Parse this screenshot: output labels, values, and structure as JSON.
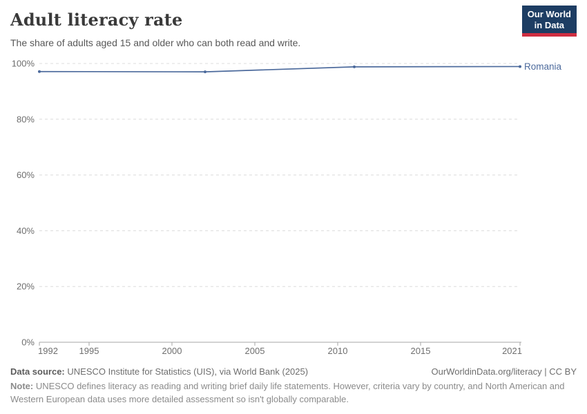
{
  "header": {
    "title": "Adult literacy rate",
    "subtitle": "The share of adults aged 15 and older who can both read and write.",
    "logo": {
      "line1": "Our World",
      "line2": "in Data"
    }
  },
  "colors": {
    "series_blue": "#4c6a9c",
    "grid": "#dcdcdc",
    "axis": "#a5a5a5",
    "tick_text": "#6e6e6e",
    "logo_navy": "#1d3d63",
    "logo_red": "#cf2e41"
  },
  "chart_data": {
    "type": "line",
    "title": "Adult literacy rate",
    "subtitle": "The share of adults aged 15 and older who can both read and write.",
    "x": [
      1992,
      2002,
      2011,
      2021
    ],
    "series": [
      {
        "name": "Romania",
        "color": "#4c6a9c",
        "values": [
          97.1,
          97.0,
          98.8,
          98.9
        ]
      }
    ],
    "xlim": [
      1992,
      2021
    ],
    "ylim": [
      0,
      100
    ],
    "xticks": [
      {
        "v": 1992,
        "label": "1992"
      },
      {
        "v": 1995,
        "label": "1995"
      },
      {
        "v": 2000,
        "label": "2000"
      },
      {
        "v": 2005,
        "label": "2005"
      },
      {
        "v": 2010,
        "label": "2010"
      },
      {
        "v": 2015,
        "label": "2015"
      },
      {
        "v": 2021,
        "label": "2021"
      }
    ],
    "yticks": [
      {
        "v": 0,
        "label": "0%"
      },
      {
        "v": 20,
        "label": "20%"
      },
      {
        "v": 40,
        "label": "40%"
      },
      {
        "v": 60,
        "label": "60%"
      },
      {
        "v": 80,
        "label": "80%"
      },
      {
        "v": 100,
        "label": "100%"
      }
    ],
    "grid": "horizontal-dashed",
    "legend": "line-end-label"
  },
  "footer": {
    "source_label": "Data source:",
    "source_text": "UNESCO Institute for Statistics (UIS), via World Bank (2025)",
    "license": "OurWorldinData.org/literacy | CC BY",
    "note_label": "Note:",
    "note_text": "UNESCO defines literacy as reading and writing brief daily life statements. However, criteria vary by country, and North American and Western European data uses more detailed assessment so isn't globally comparable."
  }
}
